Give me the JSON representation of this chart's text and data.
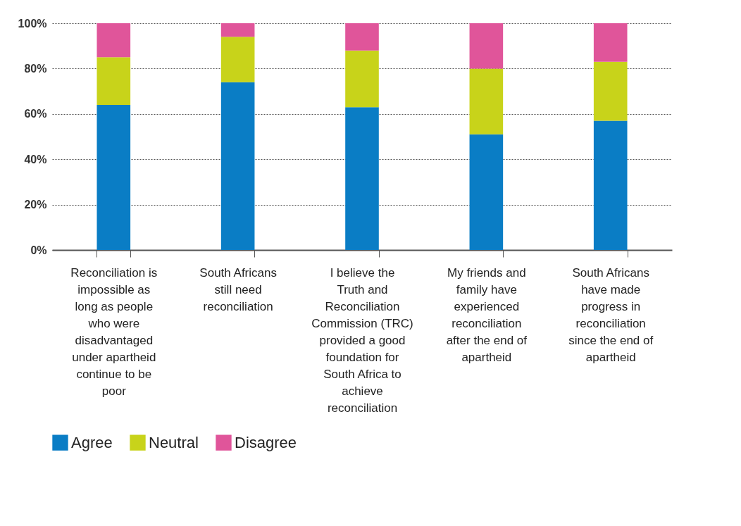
{
  "chart_data": {
    "type": "bar",
    "stacked": true,
    "categories": [
      "Reconciliation is impossible as long as people who were disadvantaged under apartheid continue to be poor",
      "South Africans still need reconciliation",
      "I believe the Truth and Reconciliation Commission (TRC) provided a good foundation for South Africa to achieve reconciliation",
      "My friends and family have experienced reconciliation after the end of apartheid",
      "South Africans have made progress in reconciliation since the end of apartheid"
    ],
    "series": [
      {
        "name": "Agree",
        "color": "#0a7dc5",
        "values": [
          64,
          74,
          63,
          51,
          57
        ]
      },
      {
        "name": "Neutral",
        "color": "#c8d31a",
        "values": [
          21,
          20,
          25,
          29,
          26
        ]
      },
      {
        "name": "Disagree",
        "color": "#e0559a",
        "values": [
          15,
          6,
          12,
          20,
          17
        ]
      }
    ],
    "ylim": [
      0,
      100
    ],
    "yticks": [
      {
        "value": 0,
        "label": "0%"
      },
      {
        "value": 20,
        "label": "20%"
      },
      {
        "value": 40,
        "label": "40%"
      },
      {
        "value": 60,
        "label": "60%"
      },
      {
        "value": 80,
        "label": "80%"
      },
      {
        "value": 100,
        "label": "100%"
      }
    ],
    "grid": "y",
    "legend": "bottom"
  }
}
